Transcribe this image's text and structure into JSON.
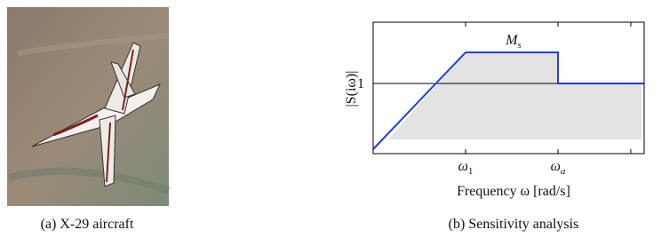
{
  "panel_a": {
    "caption": "(a) X-29 aircraft"
  },
  "panel_b": {
    "caption": "(b) Sensitivity analysis",
    "y_label": "|S(iω)|",
    "y_tick": "1",
    "x_label": "Frequency ω [rad/s]",
    "peak_label": {
      "main": "M",
      "sub": "s"
    },
    "x_ticks": [
      {
        "main": "ω",
        "sub": "1"
      },
      {
        "main": "ω",
        "sub": "a"
      }
    ]
  }
}
